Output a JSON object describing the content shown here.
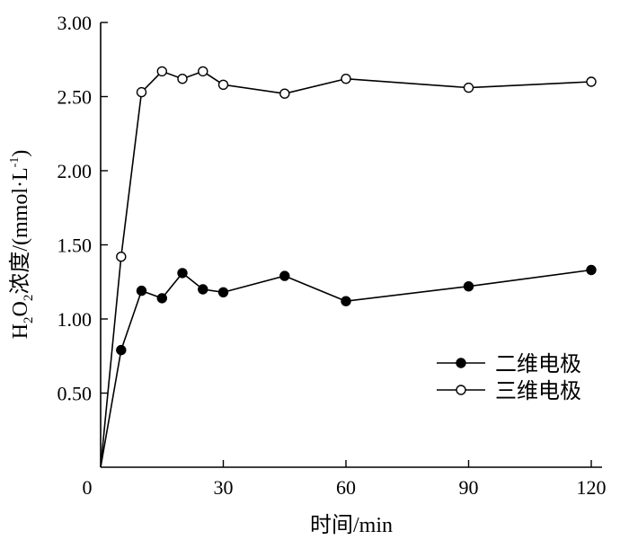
{
  "chart_data": {
    "type": "line",
    "xlabel": "时间/min",
    "ylabel": {
      "prefix": "H",
      "sub1": "2",
      "mid": "O",
      "sub2": "2",
      "text": "浓度/(mmol·L",
      "sup": "-1",
      "suffix": ")"
    },
    "xlim": [
      0,
      120
    ],
    "ylim": [
      0,
      3.0
    ],
    "xticks": [
      0,
      30,
      60,
      90,
      120
    ],
    "xtick_labels": [
      "0",
      "30",
      "60",
      "90",
      "120"
    ],
    "yticks": [
      0.5,
      1.0,
      1.5,
      2.0,
      2.5,
      3.0
    ],
    "ytick_labels": [
      "0.50",
      "1.00",
      "1.50",
      "2.00",
      "2.50",
      "3.00"
    ],
    "grid": false,
    "legend_position": "lower-right",
    "series": [
      {
        "name": "二维电极",
        "marker": "filled-circle",
        "x": [
          0,
          5,
          10,
          15,
          20,
          25,
          30,
          45,
          60,
          90,
          120
        ],
        "y": [
          0,
          0.79,
          1.19,
          1.14,
          1.31,
          1.2,
          1.18,
          1.29,
          1.12,
          1.22,
          1.33
        ]
      },
      {
        "name": "三维电极",
        "marker": "open-circle",
        "x": [
          0,
          5,
          10,
          15,
          20,
          25,
          30,
          45,
          60,
          90,
          120
        ],
        "y": [
          0,
          1.42,
          2.53,
          2.67,
          2.62,
          2.67,
          2.58,
          2.52,
          2.62,
          2.56,
          2.6
        ]
      }
    ]
  }
}
